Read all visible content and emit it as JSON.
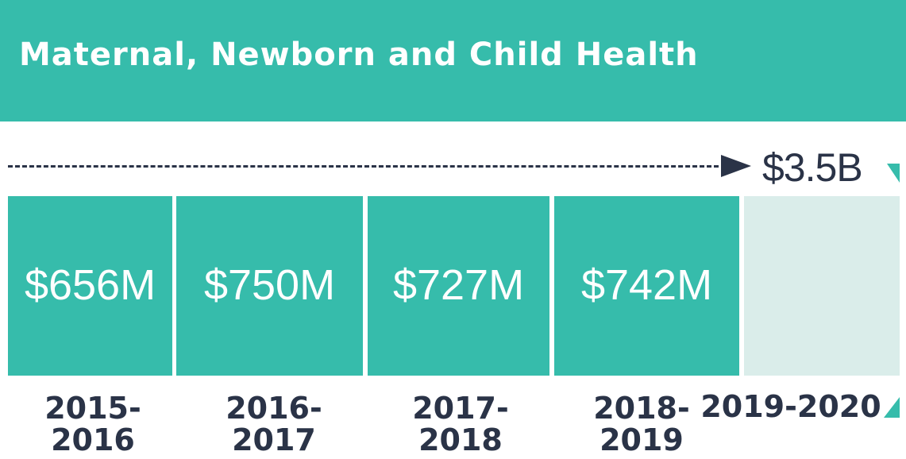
{
  "header": {
    "title": "Maternal, Newborn and Child Health"
  },
  "total": {
    "label": "$3.5B"
  },
  "chart_data": {
    "type": "bar",
    "categories": [
      "2015-2016",
      "2016-2017",
      "2017-2018",
      "2018-2019",
      "2019-2020"
    ],
    "category_label_lines": [
      [
        "2015-",
        "2016"
      ],
      [
        "2016-",
        "2017"
      ],
      [
        "2017-",
        "2018"
      ],
      [
        "2018-",
        "2019"
      ],
      [
        "2019-2020"
      ]
    ],
    "values": [
      656,
      750,
      727,
      742,
      null
    ],
    "value_labels": [
      "$656M",
      "$750M",
      "$727M",
      "$742M",
      ""
    ],
    "unit": "million CAD",
    "total_value": 3500,
    "total_label": "$3.5B",
    "grid": false,
    "legend": "none"
  },
  "colors": {
    "accent": "#36bcab",
    "pending": "#daedea",
    "text_dark": "#2a3347",
    "banner_text": "#ffffff"
  }
}
